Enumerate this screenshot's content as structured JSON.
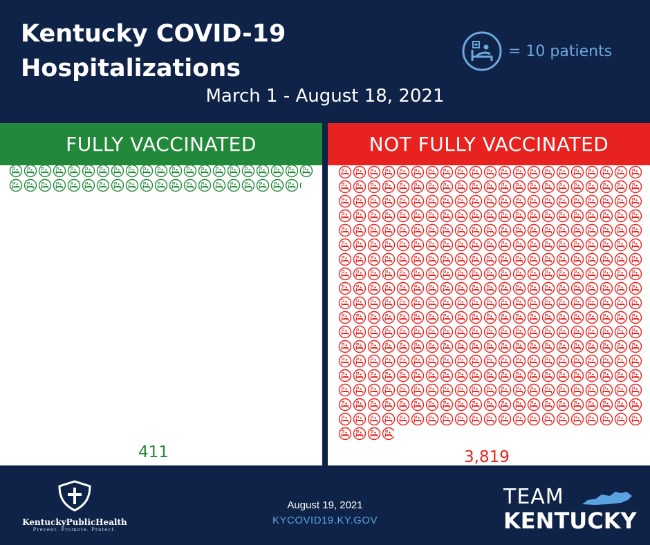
{
  "header": {
    "title": "Kentucky COVID-19 Hospitalizations",
    "subtitle": "March 1 - August 18, 2021",
    "legend": {
      "icon": "hospital-bed-patient-icon",
      "text": "= 10 patients"
    }
  },
  "chart_data": {
    "type": "pictograph",
    "title": "Kentucky COVID-19 Hospitalizations",
    "subtitle": "March 1 - August 18, 2021",
    "unit_value": 10,
    "categories": [
      "FULLY VACCINATED",
      "NOT FULLY VACCINATED"
    ],
    "values": [
      411,
      3819
    ],
    "value_labels": [
      "411",
      "3,819"
    ],
    "colors": [
      "#23893a",
      "#e8221e"
    ]
  },
  "footer": {
    "org_name": "KentuckyPublicHealth",
    "org_tagline": "Prevent. Promote. Protect.",
    "date": "August 19, 2021",
    "url": "KYCOVID19.KY.GOV",
    "brand_line1": "TEAM",
    "brand_line2": "KENTUCKY"
  }
}
